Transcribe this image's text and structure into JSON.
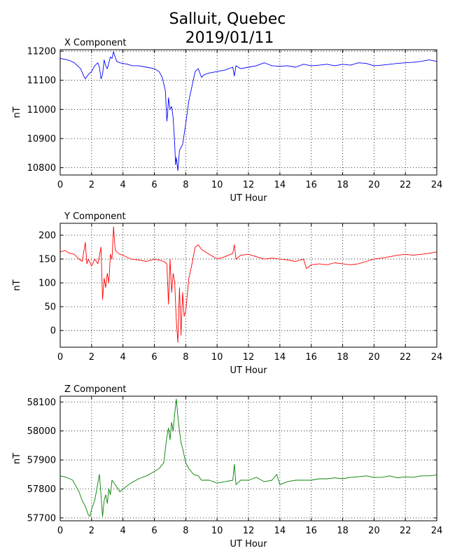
{
  "title_line1": "Salluit, Quebec",
  "title_line2": "2019/01/11",
  "chart_data": [
    {
      "type": "line",
      "component_title": "X Component",
      "xlabel": "UT Hour",
      "ylabel": "nT",
      "xlim": [
        0,
        24
      ],
      "ylim": [
        10775,
        11205
      ],
      "xticks": [
        0,
        2,
        4,
        6,
        8,
        10,
        12,
        14,
        16,
        18,
        20,
        22,
        24
      ],
      "yticks": [
        10800,
        10900,
        11000,
        11100,
        11200
      ],
      "grid": true,
      "color": "#0000ff",
      "x": [
        0,
        0.3,
        0.6,
        0.9,
        1.1,
        1.3,
        1.5,
        1.6,
        1.8,
        2.0,
        2.2,
        2.4,
        2.5,
        2.6,
        2.7,
        2.8,
        2.9,
        3.0,
        3.1,
        3.2,
        3.3,
        3.4,
        3.5,
        3.6,
        3.8,
        4.0,
        4.3,
        4.6,
        5.0,
        5.5,
        6.0,
        6.3,
        6.5,
        6.7,
        6.8,
        6.85,
        6.9,
        7.0,
        7.1,
        7.2,
        7.3,
        7.35,
        7.4,
        7.5,
        7.6,
        7.7,
        7.8,
        8.0,
        8.2,
        8.4,
        8.6,
        8.8,
        9.0,
        9.2,
        9.5,
        10.0,
        10.5,
        11.0,
        11.1,
        11.2,
        11.5,
        12.0,
        12.5,
        13.0,
        13.5,
        14.0,
        14.5,
        15.0,
        15.5,
        16.0,
        16.5,
        17.0,
        17.5,
        18.0,
        18.5,
        19.0,
        19.5,
        20.0,
        20.5,
        21.0,
        21.5,
        22.0,
        22.5,
        23.0,
        23.5,
        24.0
      ],
      "values": [
        11175,
        11172,
        11168,
        11160,
        11150,
        11140,
        11115,
        11105,
        11120,
        11130,
        11150,
        11160,
        11145,
        11105,
        11120,
        11170,
        11150,
        11140,
        11160,
        11180,
        11175,
        11198,
        11180,
        11165,
        11160,
        11158,
        11155,
        11150,
        11150,
        11145,
        11140,
        11130,
        11110,
        11065,
        10960,
        10990,
        11040,
        11000,
        11010,
        10970,
        10880,
        10810,
        10835,
        10790,
        10860,
        10870,
        10880,
        10950,
        11030,
        11080,
        11130,
        11140,
        11110,
        11120,
        11125,
        11130,
        11135,
        11145,
        11115,
        11150,
        11140,
        11145,
        11150,
        11160,
        11150,
        11148,
        11150,
        11145,
        11155,
        11150,
        11152,
        11155,
        11150,
        11155,
        11152,
        11160,
        11158,
        11150,
        11152,
        11155,
        11158,
        11160,
        11162,
        11165,
        11170,
        11165
      ]
    },
    {
      "type": "line",
      "component_title": "Y Component",
      "xlabel": "UT Hour",
      "ylabel": "nT",
      "xlim": [
        0,
        24
      ],
      "ylim": [
        -35,
        225
      ],
      "xticks": [
        0,
        2,
        4,
        6,
        8,
        10,
        12,
        14,
        16,
        18,
        20,
        22,
        24
      ],
      "yticks": [
        0,
        50,
        100,
        150,
        200
      ],
      "grid": true,
      "color": "#ff0000",
      "x": [
        0,
        0.3,
        0.6,
        0.9,
        1.2,
        1.4,
        1.6,
        1.7,
        1.8,
        2.0,
        2.2,
        2.4,
        2.6,
        2.7,
        2.8,
        2.9,
        3.0,
        3.1,
        3.2,
        3.3,
        3.4,
        3.5,
        3.6,
        3.8,
        4.0,
        4.5,
        5.0,
        5.5,
        6.0,
        6.3,
        6.6,
        6.8,
        6.9,
        7.0,
        7.1,
        7.2,
        7.3,
        7.4,
        7.5,
        7.6,
        7.7,
        7.8,
        7.9,
        8.0,
        8.2,
        8.4,
        8.6,
        8.8,
        9.0,
        9.5,
        10.0,
        10.5,
        11.0,
        11.1,
        11.2,
        11.5,
        12.0,
        12.5,
        13.0,
        13.5,
        14.0,
        14.5,
        15.0,
        15.5,
        15.7,
        16.0,
        16.5,
        17.0,
        17.5,
        18.0,
        18.5,
        19.0,
        19.5,
        20.0,
        20.5,
        21.0,
        21.5,
        22.0,
        22.5,
        23.0,
        23.5,
        24.0
      ],
      "values": [
        165,
        168,
        162,
        160,
        150,
        145,
        185,
        140,
        150,
        135,
        150,
        140,
        175,
        65,
        110,
        90,
        120,
        100,
        160,
        150,
        218,
        170,
        165,
        160,
        158,
        150,
        148,
        145,
        150,
        148,
        145,
        140,
        55,
        150,
        80,
        120,
        100,
        20,
        -25,
        90,
        -10,
        80,
        30,
        40,
        110,
        140,
        175,
        180,
        170,
        160,
        150,
        155,
        162,
        180,
        150,
        158,
        160,
        155,
        150,
        152,
        150,
        148,
        145,
        150,
        130,
        138,
        140,
        138,
        142,
        140,
        138,
        140,
        145,
        150,
        152,
        155,
        158,
        160,
        158,
        160,
        162,
        165
      ]
    },
    {
      "type": "line",
      "component_title": "Z Component",
      "xlabel": "UT Hour",
      "ylabel": "nT",
      "xlim": [
        0,
        24
      ],
      "ylim": [
        57690,
        58120
      ],
      "xticks": [
        0,
        2,
        4,
        6,
        8,
        10,
        12,
        14,
        16,
        18,
        20,
        22,
        24
      ],
      "yticks": [
        57700,
        57800,
        57900,
        58000,
        58100
      ],
      "grid": true,
      "color": "#008000",
      "x": [
        0,
        0.4,
        0.8,
        1.0,
        1.2,
        1.4,
        1.6,
        1.8,
        1.9,
        2.0,
        2.2,
        2.4,
        2.5,
        2.6,
        2.7,
        2.8,
        2.9,
        3.0,
        3.1,
        3.2,
        3.3,
        3.5,
        3.8,
        4.0,
        4.5,
        5.0,
        5.5,
        6.0,
        6.3,
        6.6,
        6.8,
        6.9,
        7.0,
        7.1,
        7.2,
        7.3,
        7.4,
        7.5,
        7.6,
        7.7,
        7.8,
        8.0,
        8.2,
        8.5,
        8.8,
        9.0,
        9.5,
        10.0,
        10.5,
        11.0,
        11.1,
        11.2,
        11.5,
        12.0,
        12.5,
        13.0,
        13.5,
        13.8,
        14.0,
        14.5,
        15.0,
        15.5,
        16.0,
        16.5,
        17.0,
        17.5,
        18.0,
        18.5,
        19.0,
        19.5,
        20.0,
        20.5,
        21.0,
        21.5,
        22.0,
        22.5,
        23.0,
        23.5,
        24.0
      ],
      "values": [
        57845,
        57840,
        57830,
        57810,
        57790,
        57760,
        57740,
        57710,
        57705,
        57730,
        57760,
        57820,
        57850,
        57780,
        57705,
        57760,
        57780,
        57750,
        57800,
        57780,
        57830,
        57815,
        57790,
        57800,
        57820,
        57835,
        57845,
        57860,
        57870,
        57890,
        57980,
        58010,
        57970,
        58030,
        58000,
        58060,
        58110,
        58050,
        58000,
        57960,
        57940,
        57890,
        57870,
        57850,
        57845,
        57830,
        57830,
        57820,
        57825,
        57830,
        57885,
        57815,
        57830,
        57830,
        57840,
        57825,
        57830,
        57850,
        57815,
        57825,
        57830,
        57830,
        57830,
        57835,
        57835,
        57838,
        57835,
        57840,
        57842,
        57845,
        57840,
        57840,
        57845,
        57838,
        57842,
        57840,
        57845,
        57845,
        57848
      ]
    }
  ]
}
